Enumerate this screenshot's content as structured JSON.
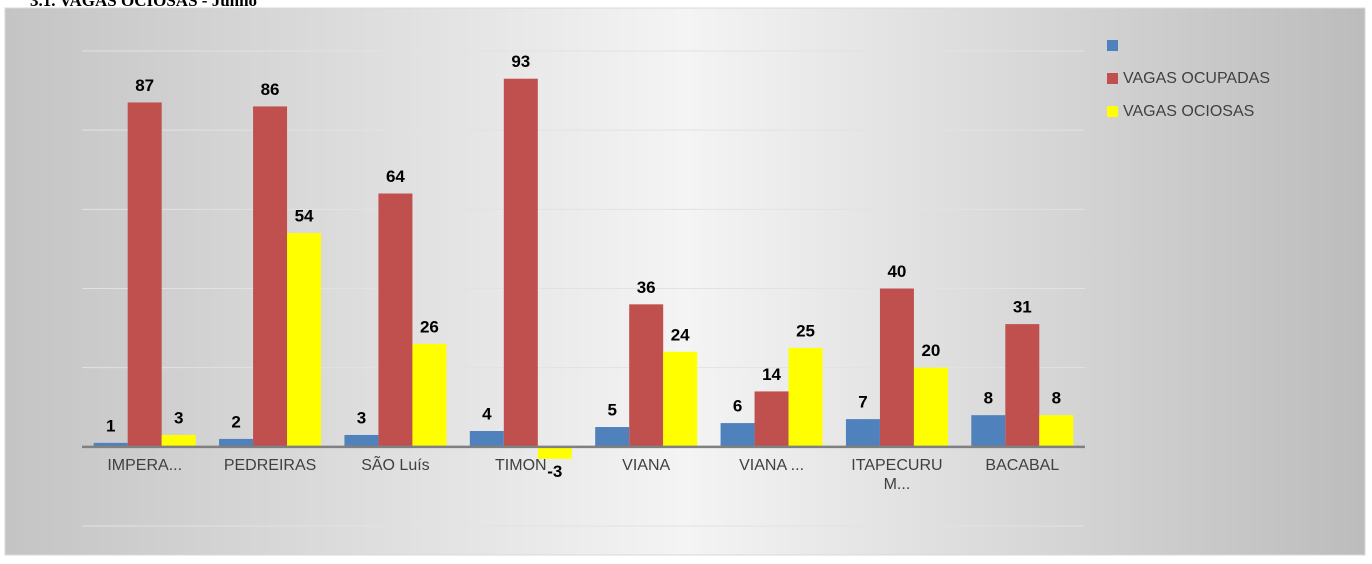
{
  "chart_data": {
    "type": "bar",
    "title": "3.1. VAGAS OCIOSAS - Junho",
    "categories": [
      "IMPERA...",
      "PEDREIRAS",
      "SÃO Luís",
      "TIMON",
      "VIANA",
      "VIANA ...",
      "ITAPECURU M...",
      "BACABAL"
    ],
    "series": [
      {
        "color": "#4f81bd",
        "values": [
          1,
          2,
          3,
          4,
          5,
          6,
          7,
          8
        ]
      },
      {
        "name": "VAGAS OCUPADAS",
        "color": "#c0504d",
        "values": [
          87,
          86,
          64,
          93,
          36,
          14,
          40,
          31
        ]
      },
      {
        "name": "VAGAS OCIOSAS",
        "color": "#ffff00",
        "values": [
          3,
          54,
          26,
          -3,
          24,
          25,
          20,
          8
        ]
      }
    ],
    "ylim": [
      -20,
      100
    ],
    "yticks": [
      -20,
      0,
      20,
      40,
      60,
      80,
      100
    ],
    "grid": true,
    "legend": "top-right"
  }
}
